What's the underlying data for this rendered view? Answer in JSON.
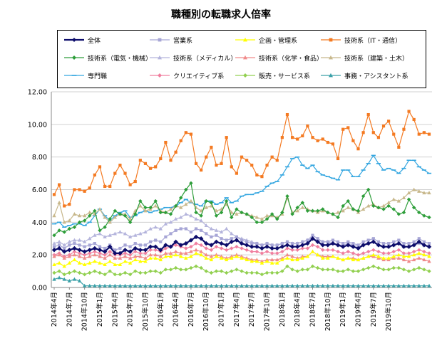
{
  "chart_data": {
    "type": "line",
    "title": "職種別の転職求人倍率",
    "xlabel": "",
    "ylabel": "",
    "ylim": [
      0,
      12
    ],
    "yticks": [
      "0.00",
      "2.00",
      "4.00",
      "6.00",
      "8.00",
      "10.00",
      "12.00"
    ],
    "grid": "horizontal",
    "legend_position": "top",
    "xtick_labels": [
      "2014年4月",
      "2014年7月",
      "2014年10月",
      "2015年1月",
      "2015年4月",
      "2015年7月",
      "2015年10月",
      "2016年1月",
      "2016年4月",
      "2016年7月",
      "2016年10月",
      "2017年1月",
      "2017年4月",
      "2017年7月",
      "2017年10月",
      "2018年1月",
      "2018年4月",
      "2018年7月",
      "2018年10月",
      "2019年1月",
      "2019年4月",
      "2019年7月",
      "2019年10月"
    ],
    "series": [
      {
        "name": "全体",
        "color": "#0d0d6b",
        "marker": "diamond",
        "width": 2.2,
        "values": [
          2.3,
          2.4,
          2.2,
          2.3,
          2.4,
          2.3,
          2.2,
          2.3,
          2.4,
          2.3,
          2.2,
          2.5,
          2.1,
          2.1,
          2.3,
          2.2,
          2.4,
          2.3,
          2.3,
          2.5,
          2.5,
          2.3,
          2.6,
          2.5,
          2.8,
          2.6,
          2.7,
          2.9,
          3.1,
          3.0,
          2.7,
          2.6,
          2.8,
          2.7,
          2.6,
          2.8,
          2.9,
          2.7,
          2.6,
          2.5,
          2.5,
          2.4,
          2.5,
          2.4,
          2.4,
          2.5,
          2.6,
          2.5,
          2.5,
          2.6,
          2.7,
          3.0,
          2.8,
          2.6,
          2.6,
          2.7,
          2.6,
          2.5,
          2.6,
          2.5,
          2.4,
          2.6,
          2.7,
          2.8,
          2.6,
          2.5,
          2.5,
          2.6,
          2.7,
          2.5,
          2.5,
          2.6,
          2.8,
          2.6,
          2.5
        ]
      },
      {
        "name": "営業系",
        "color": "#a7a6d6",
        "marker": "square",
        "width": 1.2,
        "values": [
          2.5,
          2.6,
          2.4,
          2.6,
          2.7,
          2.6,
          2.5,
          2.6,
          2.7,
          2.5,
          2.4,
          2.6,
          2.3,
          2.4,
          2.6,
          2.5,
          2.7,
          2.6,
          2.6,
          2.8,
          2.9,
          2.8,
          3.1,
          3.3,
          3.5,
          3.6,
          3.6,
          3.4,
          3.6,
          3.5,
          3.3,
          3.1,
          3.2,
          3.0,
          2.9,
          3.0,
          3.1,
          2.9,
          2.8,
          2.7,
          2.7,
          2.6,
          2.7,
          2.6,
          2.6,
          2.7,
          2.8,
          2.7,
          2.7,
          2.8,
          2.9,
          3.2,
          3.0,
          2.8,
          2.8,
          2.9,
          2.8,
          2.7,
          2.8,
          2.7,
          2.6,
          2.8,
          2.9,
          3.0,
          2.8,
          2.7,
          2.7,
          2.8,
          2.9,
          2.7,
          2.7,
          2.8,
          3.0,
          2.8,
          2.7
        ]
      },
      {
        "name": "企画・管理系",
        "color": "#ffff00",
        "marker": "triangle",
        "width": 1.2,
        "values": [
          1.4,
          1.5,
          1.3,
          1.5,
          1.7,
          1.5,
          1.4,
          1.5,
          1.6,
          1.5,
          1.4,
          1.6,
          1.4,
          1.4,
          1.6,
          1.5,
          1.7,
          1.6,
          1.6,
          1.8,
          1.8,
          1.7,
          1.9,
          1.9,
          2.0,
          1.9,
          1.8,
          1.9,
          2.1,
          2.0,
          1.8,
          1.7,
          1.9,
          1.8,
          1.7,
          1.8,
          1.9,
          1.8,
          1.7,
          1.6,
          1.6,
          1.5,
          1.6,
          1.5,
          1.5,
          1.7,
          1.8,
          1.7,
          1.7,
          1.8,
          1.9,
          2.2,
          2.0,
          1.8,
          1.8,
          1.9,
          1.8,
          1.7,
          1.8,
          1.7,
          1.7,
          1.8,
          1.9,
          2.0,
          1.9,
          1.8,
          1.8,
          1.9,
          2.0,
          1.9,
          1.9,
          2.0,
          2.1,
          2.0,
          1.9
        ]
      },
      {
        "name": "技術系（IT・通信）",
        "color": "#f47a22",
        "marker": "square",
        "width": 1.2,
        "values": [
          5.7,
          6.3,
          5.0,
          5.1,
          6.0,
          6.0,
          5.9,
          6.1,
          6.9,
          7.4,
          6.2,
          6.2,
          7.0,
          7.5,
          7.0,
          6.3,
          6.5,
          7.8,
          7.6,
          7.3,
          7.4,
          7.9,
          8.9,
          7.8,
          8.3,
          9.0,
          9.5,
          9.4,
          7.6,
          7.2,
          8.0,
          8.6,
          7.5,
          7.6,
          9.2,
          7.4,
          7.0,
          8.0,
          7.8,
          7.5,
          6.9,
          6.8,
          7.5,
          8.0,
          7.8,
          9.2,
          10.6,
          9.2,
          9.1,
          9.3,
          9.9,
          9.2,
          9.0,
          9.1,
          8.9,
          8.8,
          7.9,
          9.7,
          9.8,
          9.0,
          8.5,
          9.5,
          10.6,
          9.5,
          9.2,
          9.9,
          10.2,
          9.4,
          8.6,
          9.7,
          10.8,
          10.3,
          9.4,
          9.5,
          9.4
        ]
      },
      {
        "name": "技術系（電気・機械）",
        "color": "#2e9e3a",
        "marker": "diamond",
        "width": 1.2,
        "values": [
          3.2,
          3.5,
          3.4,
          3.6,
          3.7,
          4.0,
          4.1,
          4.4,
          4.7,
          3.5,
          3.7,
          4.2,
          4.7,
          4.5,
          4.4,
          4.0,
          4.5,
          5.3,
          4.9,
          4.9,
          5.3,
          4.6,
          4.6,
          4.5,
          5.0,
          5.5,
          6.0,
          6.4,
          4.6,
          4.4,
          5.3,
          5.2,
          4.4,
          4.6,
          5.3,
          4.3,
          4.8,
          4.6,
          4.5,
          4.3,
          4.0,
          4.0,
          4.2,
          4.5,
          4.2,
          4.6,
          5.6,
          4.5,
          4.9,
          5.2,
          4.7,
          4.7,
          4.7,
          4.8,
          4.6,
          4.5,
          4.3,
          5.0,
          5.3,
          4.8,
          4.7,
          5.6,
          6.0,
          5.0,
          4.9,
          4.8,
          5.0,
          4.8,
          4.5,
          4.6,
          5.4,
          4.9,
          4.6,
          4.4,
          4.3
        ]
      },
      {
        "name": "技術系（メディカル）",
        "color": "#b4b4dc",
        "marker": "triangle",
        "width": 1.2,
        "values": [
          2.7,
          2.8,
          2.6,
          2.8,
          2.9,
          2.9,
          2.8,
          3.0,
          3.2,
          3.3,
          3.1,
          3.2,
          3.3,
          3.4,
          3.3,
          3.1,
          3.2,
          3.3,
          3.4,
          3.6,
          3.7,
          3.6,
          3.9,
          4.0,
          4.2,
          4.3,
          4.5,
          4.4,
          4.2,
          4.1,
          3.8,
          3.6,
          3.5,
          3.4,
          3.6,
          3.3,
          3.1,
          3.0,
          2.9,
          2.8,
          2.7,
          2.6,
          2.7,
          2.6,
          2.6,
          2.7,
          2.8,
          2.7,
          2.7,
          2.8,
          2.9,
          3.0,
          2.9,
          2.8,
          2.8,
          2.7,
          2.6,
          2.6,
          2.7,
          2.6,
          2.5,
          2.6,
          2.7,
          2.8,
          2.6,
          2.5,
          2.5,
          2.6,
          2.7,
          2.5,
          2.5,
          2.6,
          2.7,
          2.6,
          2.5
        ]
      },
      {
        "name": "技術系（化学・食品）",
        "color": "#f08a8a",
        "marker": "triangle",
        "width": 1.2,
        "values": [
          1.9,
          2.0,
          1.8,
          1.9,
          2.0,
          1.9,
          1.8,
          1.9,
          2.0,
          1.9,
          1.8,
          2.0,
          1.8,
          1.8,
          1.9,
          1.8,
          1.9,
          1.9,
          1.8,
          2.0,
          2.0,
          1.9,
          2.1,
          2.1,
          2.2,
          2.1,
          2.1,
          2.2,
          2.3,
          2.2,
          2.0,
          1.9,
          2.0,
          1.9,
          1.8,
          1.9,
          2.0,
          1.9,
          1.8,
          1.7,
          1.7,
          1.6,
          1.7,
          1.7,
          1.7,
          1.8,
          2.0,
          1.9,
          1.8,
          1.9,
          1.9,
          2.2,
          2.0,
          1.9,
          1.9,
          1.9,
          1.8,
          1.7,
          1.8,
          1.8,
          1.7,
          1.8,
          1.9,
          1.9,
          1.8,
          1.7,
          1.7,
          1.8,
          1.8,
          1.7,
          1.6,
          1.7,
          1.8,
          1.7,
          1.6
        ]
      },
      {
        "name": "技術系（建築・土木）",
        "color": "#c8b88c",
        "marker": "triangle",
        "width": 1.2,
        "values": [
          4.4,
          5.2,
          4.0,
          4.1,
          4.5,
          4.4,
          4.4,
          4.6,
          4.5,
          4.8,
          4.3,
          4.0,
          4.3,
          4.5,
          4.5,
          4.2,
          4.7,
          5.0,
          4.7,
          4.8,
          5.0,
          4.7,
          4.6,
          4.8,
          5.0,
          4.9,
          5.1,
          5.3,
          4.9,
          4.7,
          4.9,
          5.0,
          4.7,
          4.8,
          5.1,
          4.6,
          4.5,
          4.6,
          4.5,
          4.4,
          4.3,
          4.2,
          4.4,
          4.4,
          4.3,
          4.5,
          5.5,
          4.6,
          4.7,
          4.9,
          4.8,
          4.7,
          4.6,
          4.7,
          4.6,
          4.5,
          4.6,
          4.7,
          4.9,
          4.8,
          4.6,
          4.8,
          5.0,
          5.1,
          4.9,
          5.0,
          5.2,
          5.4,
          5.3,
          5.5,
          5.8,
          6.0,
          5.9,
          5.8,
          5.8
        ]
      },
      {
        "name": "専門職",
        "color": "#33a6e0",
        "marker": "dash",
        "width": 1.2,
        "values": [
          3.9,
          4.0,
          3.7,
          3.8,
          3.9,
          3.9,
          3.8,
          4.0,
          4.4,
          4.8,
          4.4,
          4.1,
          4.4,
          4.6,
          4.7,
          4.3,
          4.4,
          4.6,
          4.7,
          4.6,
          4.7,
          4.8,
          4.9,
          4.9,
          5.0,
          5.2,
          5.4,
          5.2,
          5.1,
          5.0,
          5.3,
          5.3,
          5.1,
          5.2,
          5.5,
          5.2,
          5.3,
          5.6,
          5.7,
          5.7,
          5.8,
          5.9,
          6.2,
          6.4,
          6.5,
          6.9,
          7.4,
          7.9,
          8.0,
          7.5,
          7.3,
          7.5,
          7.1,
          6.9,
          6.8,
          6.7,
          6.6,
          7.2,
          7.2,
          6.8,
          6.8,
          7.2,
          7.6,
          8.1,
          7.6,
          7.2,
          7.3,
          7.2,
          7.0,
          7.3,
          7.8,
          7.8,
          7.4,
          7.2,
          7.0
        ]
      },
      {
        "name": "クリエイティブ系",
        "color": "#f07f9f",
        "marker": "diamond",
        "width": 1.2,
        "values": [
          2.0,
          2.1,
          1.9,
          2.0,
          2.2,
          2.1,
          2.0,
          2.1,
          2.2,
          2.1,
          2.0,
          2.2,
          2.0,
          2.0,
          2.1,
          2.0,
          2.2,
          2.1,
          2.1,
          2.3,
          2.3,
          2.2,
          2.4,
          2.5,
          2.6,
          2.5,
          2.4,
          2.5,
          2.7,
          2.6,
          2.4,
          2.3,
          2.5,
          2.4,
          2.3,
          2.4,
          2.5,
          2.4,
          2.3,
          2.2,
          2.2,
          2.1,
          2.2,
          2.1,
          2.1,
          2.2,
          2.4,
          2.3,
          2.3,
          2.4,
          2.4,
          2.6,
          2.5,
          2.3,
          2.3,
          2.3,
          2.2,
          2.1,
          2.2,
          2.1,
          2.0,
          2.1,
          2.2,
          2.3,
          2.2,
          2.1,
          2.1,
          2.2,
          2.3,
          2.1,
          2.1,
          2.2,
          2.3,
          2.2,
          2.1
        ]
      },
      {
        "name": "販売・サービス系",
        "color": "#92d050",
        "marker": "diamond",
        "width": 1.2,
        "values": [
          0.9,
          1.0,
          0.8,
          0.9,
          1.0,
          0.9,
          0.8,
          0.9,
          1.0,
          0.9,
          0.8,
          1.0,
          0.8,
          0.8,
          0.9,
          0.8,
          1.0,
          0.9,
          0.9,
          1.0,
          1.0,
          0.9,
          1.1,
          1.1,
          1.2,
          1.1,
          1.1,
          1.2,
          1.3,
          1.2,
          1.0,
          0.9,
          1.0,
          1.0,
          0.9,
          1.0,
          1.1,
          1.0,
          0.9,
          0.9,
          0.9,
          0.8,
          0.9,
          0.9,
          0.9,
          1.0,
          1.3,
          1.1,
          1.0,
          1.1,
          1.1,
          1.3,
          1.2,
          1.1,
          1.1,
          1.1,
          1.0,
          1.0,
          1.1,
          1.0,
          1.0,
          1.1,
          1.2,
          1.3,
          1.2,
          1.1,
          1.1,
          1.2,
          1.2,
          1.1,
          1.0,
          1.1,
          1.2,
          1.1,
          1.0
        ]
      },
      {
        "name": "事務・アシスタント系",
        "color": "#3aa0a8",
        "marker": "triangle",
        "width": 1.2,
        "values": [
          0.5,
          0.6,
          0.5,
          0.4,
          0.5,
          0.4,
          0.1,
          0.1,
          0.1,
          0.1,
          0.1,
          0.1,
          0.1,
          0.1,
          0.1,
          0.1,
          0.1,
          0.1,
          0.1,
          0.1,
          0.1,
          0.1,
          0.1,
          0.1,
          0.1,
          0.1,
          0.1,
          0.1,
          0.1,
          0.1,
          0.1,
          0.1,
          0.1,
          0.1,
          0.1,
          0.1,
          0.1,
          0.1,
          0.1,
          0.1,
          0.1,
          0.1,
          0.1,
          0.1,
          0.1,
          0.1,
          0.1,
          0.1,
          0.1,
          0.1,
          0.1,
          0.1,
          0.1,
          0.1,
          0.1,
          0.1,
          0.1,
          0.1,
          0.1,
          0.1,
          0.1,
          0.1,
          0.1,
          0.1,
          0.1,
          0.1,
          0.1,
          0.1,
          0.1,
          0.1,
          0.1,
          0.1,
          0.1,
          0.1,
          0.1
        ]
      }
    ]
  }
}
